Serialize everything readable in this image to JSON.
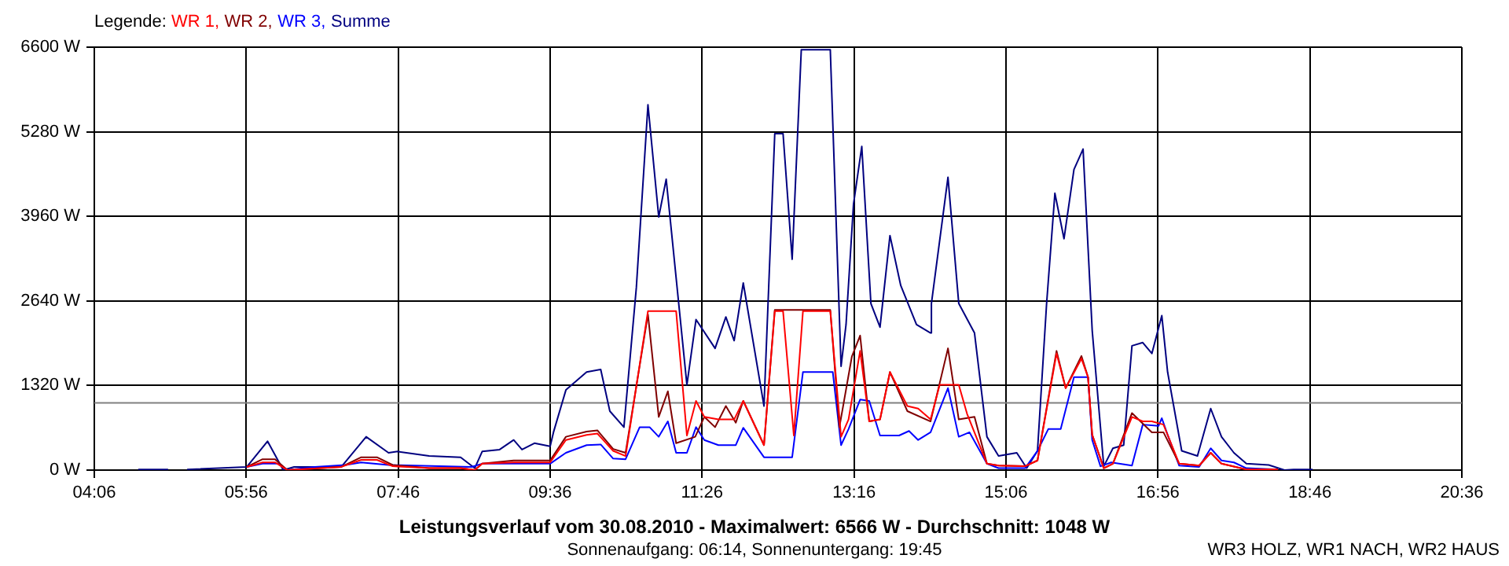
{
  "chart_data": {
    "type": "line",
    "title": "Leistungsverlauf vom 30.08.2010 - Maximalwert: 6566 W - Durchschnitt: 1048 W",
    "subtitle": "Sonnenaufgang: 06:14, Sonnenuntergang: 19:45",
    "annotations": [
      "WR3 HOLZ, WR1 NACH, WR2 HAUS"
    ],
    "legend_title": "Legende:",
    "legend": "top left",
    "grid": true,
    "marker": "none",
    "line_style": "solid",
    "xlim": [
      4.1,
      20.6
    ],
    "xticks": [
      {
        "value": 4.1,
        "label": "04:06"
      },
      {
        "value": 5.9333,
        "label": "05:56"
      },
      {
        "value": 7.7667,
        "label": "07:46"
      },
      {
        "value": 9.6,
        "label": "09:36"
      },
      {
        "value": 11.4333,
        "label": "11:26"
      },
      {
        "value": 13.2667,
        "label": "13:16"
      },
      {
        "value": 15.1,
        "label": "15:06"
      },
      {
        "value": 16.9333,
        "label": "16:56"
      },
      {
        "value": 18.7667,
        "label": "18:46"
      },
      {
        "value": 20.6,
        "label": "20:36"
      }
    ],
    "ylim": [
      0,
      6600
    ],
    "yticks": [
      {
        "value": 0,
        "label": "0 W"
      },
      {
        "value": 1320,
        "label": "1320 W"
      },
      {
        "value": 2640,
        "label": "2640 W"
      },
      {
        "value": 3960,
        "label": "3960 W"
      },
      {
        "value": 5280,
        "label": "5280 W"
      },
      {
        "value": 6600,
        "label": "6600 W"
      }
    ],
    "ref_lines": [
      {
        "axis": "y",
        "value": 1048,
        "color": "#808080"
      }
    ],
    "series": [
      {
        "name": "WR 1,",
        "color": "#ff0000",
        "x": [
          5.94,
          6.13,
          6.28,
          6.43,
          7.08,
          7.32,
          7.51,
          7.7,
          8.14,
          8.52,
          8.69,
          8.78,
          9.16,
          9.6,
          9.79,
          10.04,
          10.17,
          10.36,
          10.51,
          10.78,
          11.12,
          11.25,
          11.36,
          11.46,
          11.63,
          11.82,
          11.93,
          12.18,
          12.31,
          12.41,
          12.54,
          12.65,
          12.98,
          13.11,
          13.2,
          13.34,
          13.45,
          13.58,
          13.7,
          13.91,
          14.04,
          14.19,
          14.3,
          14.53,
          14.63,
          14.87,
          15.01,
          15.33,
          15.48,
          15.71,
          15.82,
          16.01,
          16.09,
          16.14,
          16.28,
          16.39,
          16.62,
          16.75,
          16.86,
          17.0,
          17.19,
          17.43,
          17.57,
          17.7,
          18.0,
          18.38
        ],
        "values": [
          50,
          120,
          120,
          0,
          50,
          160,
          160,
          60,
          30,
          30,
          0,
          100,
          120,
          120,
          470,
          550,
          570,
          300,
          220,
          2480,
          2480,
          540,
          1080,
          830,
          790,
          790,
          1080,
          390,
          2480,
          2480,
          540,
          2480,
          2480,
          520,
          790,
          1860,
          760,
          790,
          1530,
          1000,
          960,
          790,
          1330,
          1330,
          880,
          100,
          70,
          60,
          150,
          1820,
          1280,
          1740,
          1450,
          550,
          30,
          100,
          830,
          760,
          760,
          710,
          100,
          70,
          270,
          100,
          10,
          10
        ]
      },
      {
        "name": "WR 2,",
        "color": "#800000",
        "x": [
          5.94,
          6.13,
          6.28,
          6.43,
          7.08,
          7.32,
          7.51,
          7.7,
          8.14,
          8.52,
          8.69,
          8.78,
          9.16,
          9.6,
          9.79,
          10.04,
          10.17,
          10.36,
          10.51,
          10.78,
          10.91,
          11.02,
          11.12,
          11.35,
          11.46,
          11.59,
          11.72,
          11.84,
          11.93,
          12.18,
          12.31,
          12.98,
          13.09,
          13.24,
          13.34,
          13.45,
          13.58,
          13.7,
          13.91,
          14.19,
          14.4,
          14.53,
          14.72,
          14.87,
          15.01,
          15.33,
          15.48,
          15.71,
          15.82,
          16.01,
          16.09,
          16.14,
          16.28,
          16.39,
          16.62,
          16.86,
          17.0,
          17.19,
          17.43,
          17.57,
          17.7,
          18.0,
          18.38
        ],
        "values": [
          50,
          170,
          170,
          0,
          50,
          200,
          200,
          80,
          30,
          30,
          0,
          100,
          150,
          150,
          520,
          600,
          620,
          330,
          270,
          2430,
          830,
          1230,
          420,
          520,
          830,
          670,
          1000,
          740,
          1080,
          390,
          2500,
          2500,
          670,
          1770,
          2100,
          760,
          790,
          1530,
          920,
          760,
          1900,
          790,
          830,
          100,
          70,
          60,
          150,
          1860,
          1280,
          1780,
          1450,
          550,
          30,
          100,
          890,
          590,
          590,
          100,
          70,
          270,
          100,
          10,
          10
        ]
      },
      {
        "name": "WR 3,",
        "color": "#0000ff",
        "x": [
          5.94,
          6.13,
          6.32,
          6.43,
          6.76,
          7.13,
          7.32,
          7.65,
          8.65,
          8.78,
          9.6,
          9.79,
          10.04,
          10.21,
          10.36,
          10.51,
          10.68,
          10.8,
          10.91,
          11.02,
          11.12,
          11.25,
          11.36,
          11.46,
          11.63,
          11.84,
          11.93,
          12.18,
          12.52,
          12.65,
          13.01,
          13.11,
          13.2,
          13.34,
          13.45,
          13.58,
          13.81,
          13.93,
          14.04,
          14.19,
          14.4,
          14.53,
          14.66,
          14.87,
          15.01,
          15.33,
          15.48,
          15.61,
          15.76,
          15.92,
          16.09,
          16.14,
          16.24,
          16.37,
          16.62,
          16.75,
          16.94,
          16.98,
          17.05,
          17.19,
          17.43,
          17.57,
          17.7,
          17.85,
          18.0,
          18.38
        ],
        "values": [
          50,
          100,
          100,
          0,
          50,
          80,
          120,
          80,
          50,
          100,
          100,
          270,
          390,
          400,
          180,
          170,
          670,
          670,
          520,
          760,
          270,
          270,
          670,
          470,
          390,
          390,
          660,
          200,
          200,
          1530,
          1530,
          390,
          640,
          1100,
          1080,
          540,
          540,
          610,
          470,
          590,
          1280,
          520,
          590,
          100,
          30,
          30,
          300,
          640,
          640,
          1450,
          1450,
          470,
          60,
          120,
          70,
          710,
          690,
          810,
          550,
          70,
          50,
          340,
          150,
          120,
          30,
          10
        ]
      },
      {
        "name": "Summe",
        "color": "#000080",
        "x": [
          4.63,
          4.99,
          5.1,
          5.22,
          5.94,
          6.19,
          6.38,
          6.51,
          7.08,
          7.38,
          7.65,
          7.76,
          8.14,
          8.52,
          8.69,
          8.78,
          8.99,
          9.16,
          9.26,
          9.41,
          9.6,
          9.64,
          9.79,
          10.04,
          10.21,
          10.32,
          10.49,
          10.64,
          10.78,
          10.91,
          11.0,
          11.25,
          11.36,
          11.59,
          11.72,
          11.82,
          11.93,
          12.18,
          12.31,
          12.41,
          12.52,
          12.63,
          12.98,
          13.11,
          13.17,
          13.26,
          13.36,
          13.47,
          13.58,
          13.7,
          13.83,
          14.02,
          14.19,
          14.2,
          14.4,
          14.53,
          14.72,
          14.87,
          15.01,
          15.23,
          15.35,
          15.48,
          15.59,
          15.69,
          15.8,
          15.92,
          16.03,
          16.14,
          16.28,
          16.39,
          16.52,
          16.62,
          16.75,
          16.86,
          16.98,
          17.05,
          17.22,
          17.41,
          17.57,
          17.7,
          17.85,
          18.0,
          18.27,
          18.46,
          18.57,
          18.8
        ],
        "values": [
          10,
          10,
          null,
          10,
          50,
          450,
          0,
          50,
          50,
          520,
          270,
          290,
          220,
          200,
          30,
          290,
          320,
          470,
          320,
          420,
          370,
          590,
          1250,
          1530,
          1570,
          920,
          670,
          2850,
          5700,
          3950,
          4540,
          1330,
          2350,
          1900,
          2390,
          2020,
          2920,
          1000,
          5250,
          5250,
          3290,
          6560,
          6560,
          1620,
          2270,
          4150,
          5050,
          2600,
          2230,
          3660,
          2880,
          2270,
          2140,
          2600,
          4570,
          2600,
          2140,
          520,
          220,
          270,
          30,
          300,
          2600,
          4320,
          3610,
          4690,
          5010,
          2180,
          60,
          340,
          390,
          1940,
          1990,
          1820,
          2410,
          1530,
          300,
          220,
          960,
          520,
          270,
          100,
          80,
          0,
          10,
          10
        ]
      }
    ]
  }
}
